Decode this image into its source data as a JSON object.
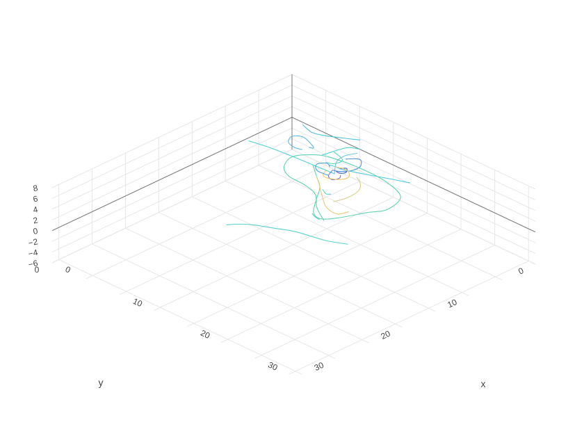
{
  "chart_data": {
    "type": "line",
    "subtype": "3d-streamtubes",
    "title": "",
    "axes": {
      "x": {
        "label": "x",
        "range": [
          0,
          36
        ],
        "ticks": [
          0,
          10,
          20,
          30
        ],
        "tick_labels": [
          "0",
          "10",
          "20",
          "30"
        ]
      },
      "y": {
        "label": "y",
        "range": [
          0,
          36
        ],
        "ticks": [
          0,
          10,
          20,
          30
        ],
        "tick_labels": [
          "0",
          "10",
          "20",
          "30"
        ]
      },
      "z": {
        "label": "",
        "range": [
          -6,
          8
        ],
        "ticks": [
          -6,
          -4,
          -2,
          0,
          2,
          4,
          6,
          8
        ],
        "tick_labels": [
          "−6",
          "−4",
          "−2",
          "0",
          "2",
          "4",
          "6",
          "8"
        ],
        "extra_label": "0"
      }
    },
    "grid": true,
    "colorscale": [
      "#3f3f9f",
      "#4e7fe0",
      "#4fb2e6",
      "#4cd0c8",
      "#6fd9a0",
      "#f3c66a"
    ],
    "series": [
      {
        "color": "#4fd0d8",
        "points": [
          [
            0.5,
            7.0,
            0
          ],
          [
            3,
            6.5,
            0
          ],
          [
            6,
            6.2,
            0
          ],
          [
            9,
            6.0,
            0
          ],
          [
            12,
            5.8,
            0
          ]
        ]
      },
      {
        "color": "#55d1cc",
        "points": [
          [
            12,
            22,
            0
          ],
          [
            12.8,
            21,
            0
          ],
          [
            14,
            20,
            0
          ],
          [
            16,
            19,
            0
          ],
          [
            18,
            18,
            0
          ],
          [
            20,
            17.5,
            0
          ],
          [
            22,
            17,
            0
          ],
          [
            24,
            16,
            0
          ]
        ]
      },
      {
        "color": "#6fc8e6",
        "points": [
          [
            12,
            5.8,
            0
          ],
          [
            11.5,
            5.2,
            0.5
          ],
          [
            11.2,
            4.6,
            1.2
          ],
          [
            11.8,
            4.0,
            2.2
          ],
          [
            13.0,
            3.4,
            3.0
          ]
        ]
      },
      {
        "color": "#4e8fe0",
        "points": [
          [
            11.2,
            3.3,
            0.8
          ],
          [
            12.8,
            2.8,
            1.4
          ],
          [
            13.8,
            3.8,
            1.2
          ],
          [
            13.4,
            4.8,
            0.8
          ],
          [
            12.2,
            5.5,
            0.4
          ],
          [
            11.5,
            5.5,
            0.2
          ]
        ]
      },
      {
        "color": "#3f5fc8",
        "points": [
          [
            11.6,
            4.6,
            0
          ],
          [
            12.3,
            4.3,
            0.3
          ],
          [
            12.8,
            4.9,
            0.2
          ],
          [
            12.4,
            5.4,
            0.1
          ],
          [
            11.8,
            5.3,
            0
          ]
        ]
      },
      {
        "color": "#7a6fd8",
        "points": [
          [
            11.3,
            5.4,
            0
          ],
          [
            11.6,
            6.3,
            -0.3
          ],
          [
            12.3,
            6.5,
            -0.5
          ],
          [
            12.9,
            6.0,
            -0.2
          ],
          [
            12.7,
            5.6,
            0
          ]
        ]
      },
      {
        "color": "#5ad0c8",
        "points": [
          [
            13.6,
            9.2,
            0
          ],
          [
            14.6,
            9.7,
            0.1
          ],
          [
            15.0,
            9.4,
            0.1
          ]
        ]
      },
      {
        "color": "#4cc8e6",
        "points": [
          [
            10.2,
            4.8,
            0
          ],
          [
            11.0,
            4.6,
            0
          ],
          [
            12.0,
            4.5,
            0
          ],
          [
            14.5,
            3.5,
            0
          ],
          [
            17.0,
            2.4,
            0
          ],
          [
            19.0,
            1.6,
            0
          ]
        ]
      },
      {
        "color": "#4dc4d8",
        "points": [
          [
            2.0,
            0.4,
            0
          ],
          [
            3.8,
            0.9,
            0
          ],
          [
            5.2,
            0.5,
            0
          ],
          [
            7.0,
            -0.5,
            0
          ],
          [
            8.6,
            -1.5,
            0
          ]
        ]
      },
      {
        "color": "#5cd6b8",
        "points": [
          [
            8.6,
            2.4,
            0
          ],
          [
            9.5,
            2.6,
            0
          ],
          [
            10.3,
            2.9,
            0
          ],
          [
            10.6,
            3.5,
            0
          ],
          [
            10.3,
            4.3,
            0
          ],
          [
            9.6,
            4.6,
            0
          ]
        ]
      },
      {
        "color": "#5ab8e8",
        "points": [
          [
            6.0,
            3.5,
            0
          ],
          [
            6.4,
            3.3,
            0
          ],
          [
            6.0,
            3.0,
            0
          ],
          [
            4.0,
            2.3,
            0
          ],
          [
            3.0,
            3.0,
            0
          ],
          [
            3.6,
            4.2,
            0
          ],
          [
            4.8,
            4.6,
            0
          ],
          [
            5.8,
            4.4,
            0
          ]
        ]
      },
      {
        "color": "#5dd3b2",
        "points": [
          [
            9.0,
            6.0,
            0
          ],
          [
            11.0,
            7.5,
            0
          ],
          [
            13.0,
            9.0,
            0
          ],
          [
            14.5,
            11.0,
            0
          ],
          [
            16.5,
            13.5,
            0
          ],
          [
            18.0,
            14.0,
            0
          ],
          [
            19.2,
            12.5,
            0
          ],
          [
            20.5,
            9.5,
            0
          ],
          [
            21.5,
            7.5,
            0
          ],
          [
            20.5,
            4.5,
            0
          ],
          [
            17.0,
            3.2,
            0
          ],
          [
            13.0,
            3.0,
            0
          ],
          [
            9.2,
            3.5,
            0
          ],
          [
            7.4,
            4.4,
            0
          ],
          [
            6.2,
            6.3,
            0
          ],
          [
            7.2,
            8.5,
            0
          ],
          [
            9.0,
            9.6,
            0
          ],
          [
            11.5,
            9.8,
            0
          ],
          [
            13.8,
            10.5,
            0
          ],
          [
            16.0,
            12.5,
            0
          ],
          [
            18.5,
            14.0,
            0
          ]
        ]
      },
      {
        "color": "#f3c66a",
        "points": [
          [
            11.0,
            4.6,
            0
          ],
          [
            12.0,
            4.3,
            0
          ],
          [
            13.0,
            4.6,
            0
          ],
          [
            13.6,
            5.4,
            0
          ],
          [
            13.3,
            6.3,
            0
          ],
          [
            12.2,
            7.0,
            0
          ],
          [
            11.3,
            6.8,
            0
          ],
          [
            10.9,
            6.0,
            0
          ]
        ]
      },
      {
        "color": "#e8c77a",
        "points": [
          [
            11.0,
            7.5,
            0
          ],
          [
            12.5,
            8.6,
            0
          ],
          [
            14.5,
            10.2,
            0
          ],
          [
            16.6,
            11.7,
            0
          ],
          [
            18.5,
            12.0,
            0
          ],
          [
            19.0,
            10.8,
            0
          ]
        ]
      },
      {
        "color": "#d6cf8a",
        "points": [
          [
            14.2,
            4.7,
            0
          ],
          [
            15.3,
            5.3,
            0
          ],
          [
            16.4,
            6.6,
            0
          ],
          [
            16.7,
            8.6,
            0
          ],
          [
            16.3,
            10.3,
            0
          ]
        ]
      },
      {
        "color": "#4f9fe0",
        "points": [
          [
            10.5,
            5.0,
            0
          ],
          [
            9.9,
            4.7,
            0
          ],
          [
            9.4,
            5.0,
            0
          ],
          [
            9.2,
            5.6,
            0
          ],
          [
            9.6,
            6.2,
            0
          ],
          [
            10.3,
            6.6,
            0
          ],
          [
            11.0,
            6.6,
            0
          ],
          [
            11.7,
            6.5,
            0
          ]
        ]
      },
      {
        "color": "#4cd0d0",
        "points": [
          [
            10.0,
            0.0,
            0
          ],
          [
            9.2,
            0.8,
            0.3
          ],
          [
            9.2,
            2.4,
            0.8
          ],
          [
            9.6,
            4.6,
            1.6
          ],
          [
            10.0,
            5.6,
            2.2
          ]
        ]
      },
      {
        "color": "#4fd6c0",
        "points": [
          [
            16.6,
            13.8,
            0
          ],
          [
            17.3,
            14.1,
            0
          ],
          [
            18.0,
            14.2,
            0
          ]
        ]
      }
    ]
  }
}
